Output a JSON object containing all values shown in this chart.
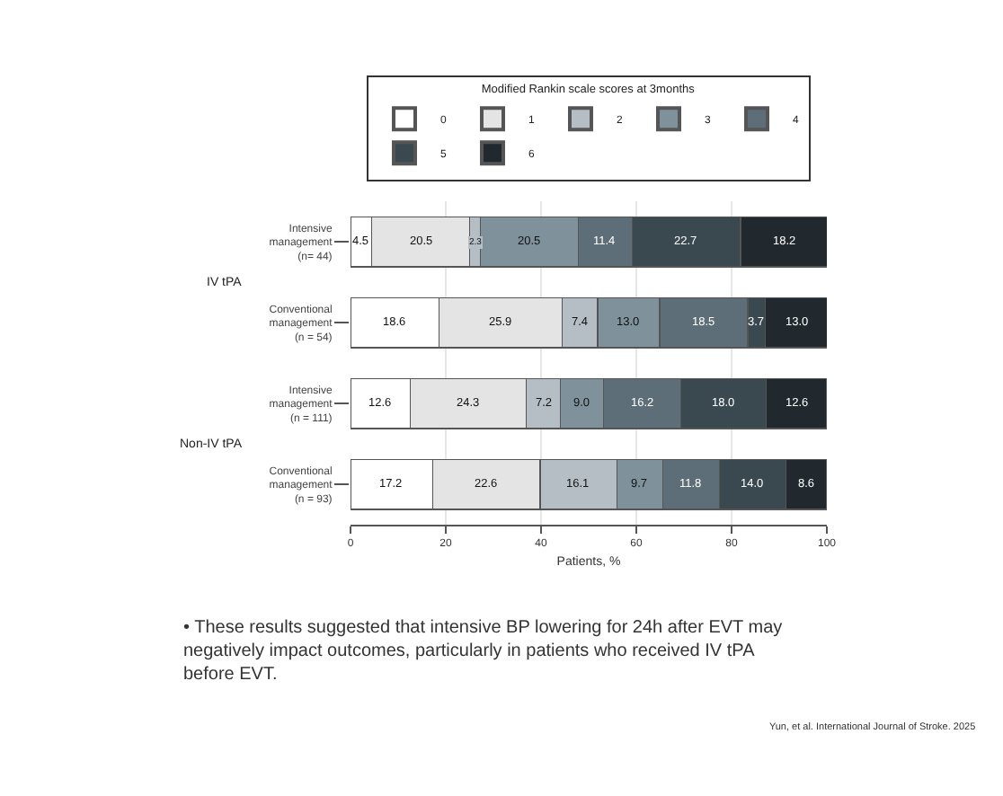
{
  "chart_data": {
    "type": "bar",
    "orientation": "horizontal",
    "stacked": true,
    "categories": [
      "Intensive management (n= 44)",
      "Conventional management (n = 54)",
      "Intensive management (n = 111)",
      "Conventional management (n = 93)"
    ],
    "series": [
      {
        "name": "0",
        "color": "#ffffff",
        "values": [
          4.5,
          18.6,
          12.6,
          17.2
        ],
        "value_labels": [
          "4.5",
          "18.6",
          "12.6",
          "17.2"
        ]
      },
      {
        "name": "1",
        "color": "#e4e4e4",
        "values": [
          20.5,
          25.9,
          24.3,
          22.6
        ],
        "value_labels": [
          "20.5",
          "25.9",
          "24.3",
          "22.6"
        ]
      },
      {
        "name": "2",
        "color": "#b4bec4",
        "values": [
          2.3,
          7.4,
          7.2,
          16.1
        ],
        "value_labels": [
          "2.3",
          "7.4",
          "7.2",
          "16.1"
        ]
      },
      {
        "name": "3",
        "color": "#7f929c",
        "values": [
          20.5,
          13.0,
          9.0,
          9.7
        ],
        "value_labels": [
          "20.5",
          "13.0",
          "9.0",
          "9.7"
        ]
      },
      {
        "name": "4",
        "color": "#5e6e78",
        "values": [
          11.4,
          18.5,
          16.2,
          11.8
        ],
        "value_labels": [
          "11.4",
          "18.5",
          "16.2",
          "11.8"
        ]
      },
      {
        "name": "5",
        "color": "#3a4850",
        "values": [
          22.7,
          3.7,
          18.0,
          14.0
        ],
        "value_labels": [
          "22.7",
          "3.7",
          "18.0",
          "14.0"
        ]
      },
      {
        "name": "6",
        "color": "#22292e",
        "values": [
          18.2,
          13.0,
          12.6,
          8.6
        ],
        "value_labels": [
          "18.2",
          "13.0",
          "12.6",
          "8.6"
        ]
      }
    ],
    "xlim": [
      0,
      100
    ],
    "xticks": [
      0,
      20,
      40,
      60,
      80,
      100
    ],
    "xlabel": "Patients, %",
    "grid": "x",
    "legend": "top",
    "legend_title": "Modified Rankin scale scores at 3months",
    "annotations": [
      "IV tPA",
      "Non-IV tPA",
      "• These results suggested that intensive BP lowering for 24h after EVT may negatively impact outcomes, particularly in patients who received IV tPA before EVT.",
      "Yun, et al. International Journal of Stroke. 2025"
    ]
  }
}
